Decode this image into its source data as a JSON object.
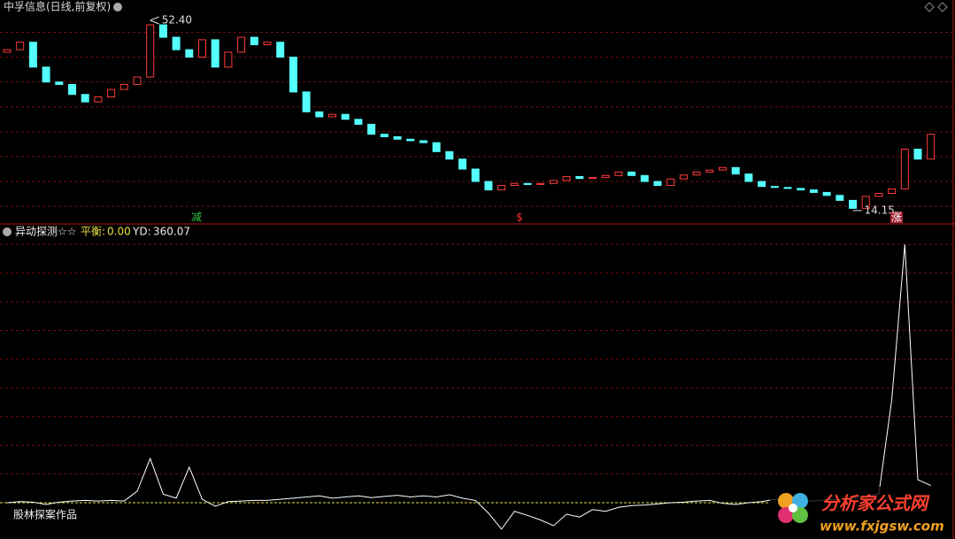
{
  "chart_data": [
    {
      "type": "candlestick",
      "title": "中孚信息(日线,前复权)",
      "open": [
        46,
        46.5,
        48,
        43,
        40,
        39.5,
        37.5,
        36,
        37,
        38.5,
        39.5,
        41,
        51.5,
        49,
        46.5,
        45,
        48.5,
        43,
        46,
        49,
        47.5,
        48,
        45,
        38,
        34,
        33,
        33.5,
        32.5,
        31.5,
        29.5,
        29,
        28.5,
        28.2,
        27.8,
        26,
        24.5,
        22.5,
        20,
        18.3,
        19.2,
        19.6,
        19.4,
        19.6,
        20.2,
        21,
        20.6,
        20.8,
        21.2,
        21.9,
        21.2,
        20,
        19.2,
        20.5,
        21.3,
        21.9,
        22.3,
        22.8,
        21.5,
        20,
        19,
        18.8,
        18.6,
        18.3,
        17.8,
        17.2,
        16.2,
        14.6,
        17,
        17.6,
        18.5,
        26.5,
        24.5
      ],
      "close": [
        46.5,
        48,
        43,
        40,
        39.5,
        37.5,
        36,
        37,
        38.5,
        39.5,
        41,
        51.5,
        49,
        46.5,
        45,
        48.5,
        43,
        46,
        49,
        47.5,
        48,
        45,
        38,
        34,
        33,
        33.5,
        32.5,
        31.5,
        29.5,
        29,
        28.5,
        28.2,
        27.8,
        26,
        24.5,
        22.5,
        20,
        18.3,
        19.2,
        19.6,
        19.4,
        19.6,
        20.2,
        21,
        20.6,
        20.8,
        21.2,
        21.9,
        21.2,
        20,
        19.2,
        20.5,
        21.3,
        21.9,
        22.3,
        22.8,
        21.5,
        20,
        19,
        18.8,
        18.6,
        18.3,
        17.8,
        17.2,
        16.2,
        14.6,
        17,
        17.6,
        18.5,
        26.5,
        24.5,
        29.5
      ],
      "up_color": "#ff3c3c",
      "down_color": "#54ffff",
      "ylim": [
        12,
        54
      ],
      "yticks": [
        50,
        45,
        40,
        35,
        30,
        25,
        20,
        15
      ],
      "grid": true,
      "high_label": {
        "value": 52.4,
        "label": "52.40"
      },
      "low_label": {
        "value": 14.15,
        "label": "14.15"
      },
      "annotations": [
        "减",
        "$",
        "涨"
      ]
    },
    {
      "type": "line",
      "title": "异动探测☆☆",
      "balance_label": "平衡:",
      "balance": {
        "value": 0,
        "label": "0.00"
      },
      "yd_label": "YD:",
      "yd": 360.07,
      "values": [
        0,
        2,
        1,
        -3,
        1,
        3,
        4,
        3,
        4,
        3,
        20,
        77,
        15,
        8,
        62,
        6,
        -6,
        2,
        3,
        4,
        4,
        6,
        8,
        10,
        12,
        8,
        10,
        12,
        9,
        11,
        13,
        10,
        12,
        10,
        14,
        8,
        4,
        -18,
        -46,
        -15,
        -22,
        -30,
        -40,
        -20,
        -25,
        -12,
        -15,
        -8,
        -5,
        -4,
        -2,
        0,
        1,
        3,
        4,
        -1,
        -3,
        0,
        2,
        6,
        3,
        4,
        3,
        5,
        6,
        8,
        12,
        15,
        180,
        450,
        40,
        30
      ],
      "color": "#ffffff",
      "balance_color": "#e8e040",
      "ylim": [
        -57,
        478
      ],
      "yticks": [
        50,
        100,
        150,
        200,
        250,
        300,
        350,
        400,
        450
      ],
      "grid": true,
      "footer": "股林探案作品"
    }
  ],
  "watermark": {
    "name": "分析家公式网",
    "url": "www.fxjgsw.com"
  }
}
